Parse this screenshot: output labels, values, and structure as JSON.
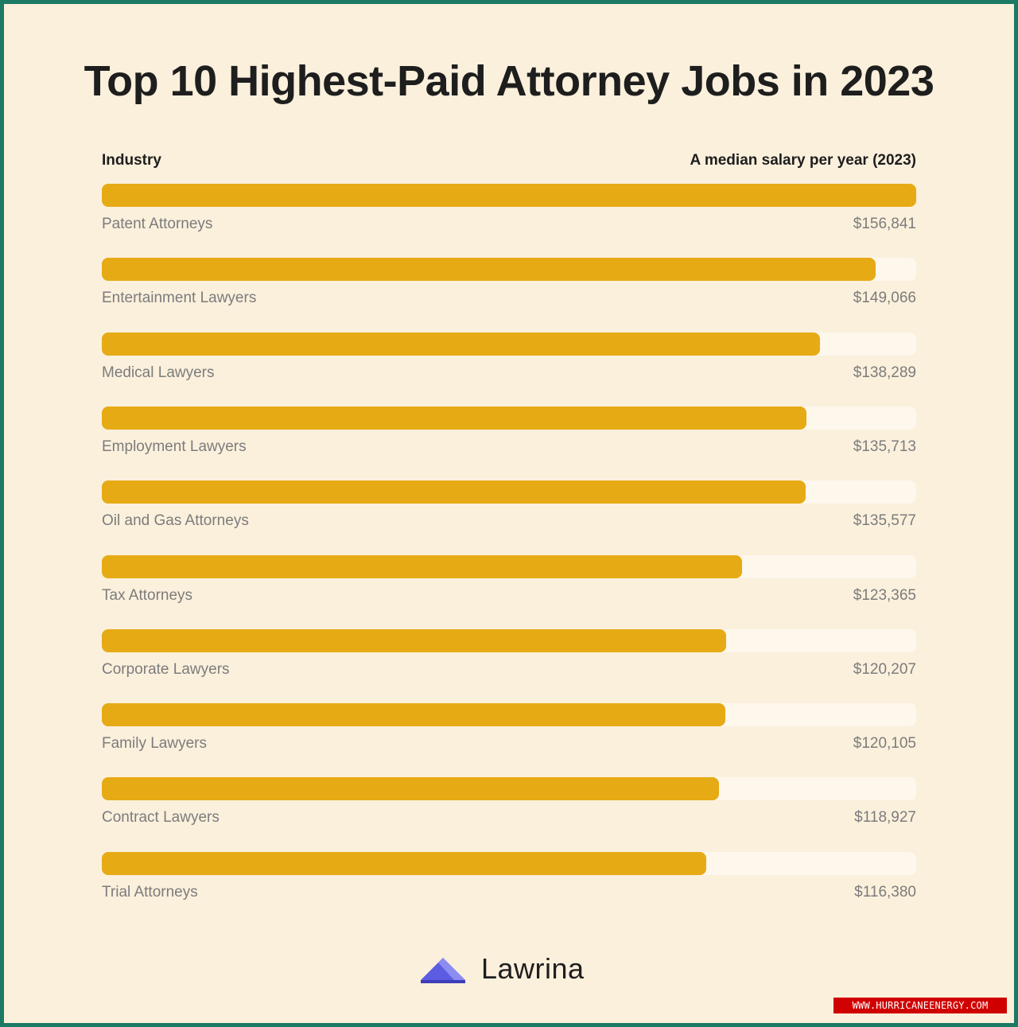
{
  "title": "Top 10 Highest-Paid Attorney Jobs in 2023",
  "header": {
    "left_label": "Industry",
    "right_label": "A median salary per year (2023)"
  },
  "colors": {
    "bar": "#e6aa14",
    "track": "#fdf7ec",
    "background": "#fbf0dc",
    "frame": "#1b7a63",
    "logo": "#5b5ce2"
  },
  "chart_data": {
    "type": "bar",
    "orientation": "horizontal",
    "xlabel": "Industry",
    "ylabel": "A median salary per year (2023)",
    "xlim": [
      0,
      156841
    ],
    "categories": [
      "Patent Attorneys",
      "Entertainment Lawyers",
      "Medical Lawyers",
      "Employment Lawyers",
      "Oil and Gas Attorneys",
      "Tax Attorneys",
      "Corporate Lawyers",
      "Family Lawyers",
      "Contract Lawyers",
      "Trial Attorneys"
    ],
    "values": [
      156841,
      149066,
      138289,
      135713,
      135577,
      123365,
      120207,
      120105,
      118927,
      116380
    ],
    "value_labels": [
      "$156,841",
      "$149,066",
      "$138,289",
      "$135,713",
      "$135,577",
      "$123,365",
      "$120,207",
      "$120,105",
      "$118,927",
      "$116,380"
    ],
    "grid": false,
    "legend": "none"
  },
  "logo": {
    "name": "Lawrina",
    "icon": "lawrina-mountain-icon"
  },
  "watermark": "WWW.HURRICANEENERGY.COM"
}
